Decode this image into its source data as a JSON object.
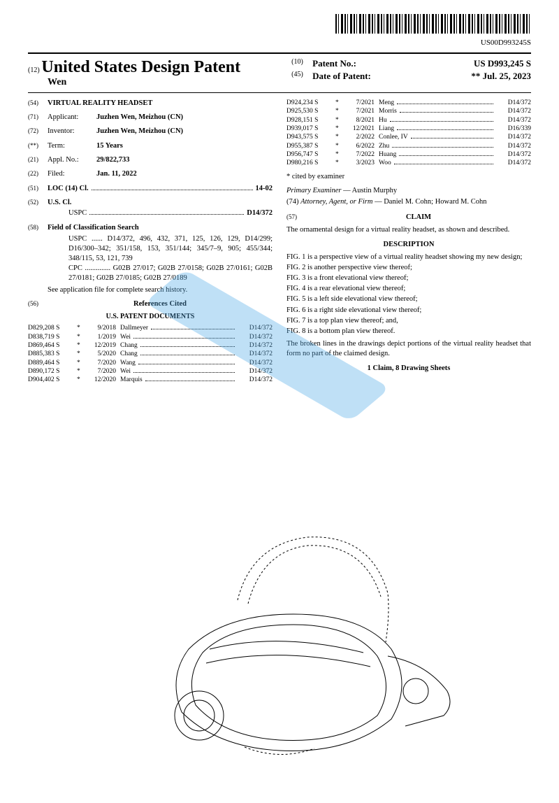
{
  "doc_number": "US00D993245S",
  "code12": "(12)",
  "title_country": "United States Design Patent",
  "author": "Wen",
  "header_right": [
    {
      "num": "(10)",
      "label": "Patent No.:",
      "val": "US D993,245 S"
    },
    {
      "num": "(45)",
      "label": "Date of Patent:",
      "val": "**    Jul. 25, 2023"
    }
  ],
  "left_fields": {
    "f54": {
      "num": "(54)",
      "val": "VIRTUAL REALITY HEADSET"
    },
    "f71": {
      "num": "(71)",
      "label": "Applicant:",
      "val": "Juzhen Wen, Meizhou (CN)"
    },
    "f72": {
      "num": "(72)",
      "label": "Inventor:",
      "val": "Juzhen Wen, Meizhou (CN)"
    },
    "fterm": {
      "num": "(**)",
      "label": "Term:",
      "val": "15 Years"
    },
    "f21": {
      "num": "(21)",
      "label": "Appl. No.:",
      "val": "29/822,733"
    },
    "f22": {
      "num": "(22)",
      "label": "Filed:",
      "val": "Jan. 11, 2022"
    },
    "f51": {
      "num": "(51)",
      "label": "LOC (14) Cl.",
      "val": "14-02"
    },
    "f52": {
      "num": "(52)",
      "label": "U.S. Cl.",
      "sub": "USPC",
      "val": "D14/372"
    },
    "f58": {
      "num": "(58)",
      "label": "Field of Classification Search",
      "uspc": "D14/372, 496, 432, 371, 125, 126, 129, D14/299; D16/300–342; 351/158, 153, 351/144; 345/7–9, 905; 455/344; 348/115, 53, 121, 739",
      "cpc": "G02B 27/017; G02B 27/0158; G02B 27/0161; G02B 27/0181; G02B 27/0185; G02B 27/0189",
      "note": "See application file for complete search history."
    },
    "f56": {
      "num": "(56)",
      "label": "References Cited",
      "sub": "U.S. PATENT DOCUMENTS"
    }
  },
  "refs_left": [
    {
      "pn": "D829,208 S",
      "m": "*",
      "d": "9/2018",
      "n": "Dallmeyer",
      "c": "D14/372"
    },
    {
      "pn": "D838,719 S",
      "m": "*",
      "d": "1/2019",
      "n": "Wei",
      "c": "D14/372"
    },
    {
      "pn": "D869,464 S",
      "m": "*",
      "d": "12/2019",
      "n": "Chang",
      "c": "D14/372"
    },
    {
      "pn": "D885,383 S",
      "m": "*",
      "d": "5/2020",
      "n": "Chang",
      "c": "D14/372"
    },
    {
      "pn": "D889,464 S",
      "m": "*",
      "d": "7/2020",
      "n": "Wang",
      "c": "D14/372"
    },
    {
      "pn": "D890,172 S",
      "m": "*",
      "d": "7/2020",
      "n": "Wei",
      "c": "D14/372"
    },
    {
      "pn": "D904,402 S",
      "m": "*",
      "d": "12/2020",
      "n": "Marquis",
      "c": "D14/372"
    }
  ],
  "refs_right": [
    {
      "pn": "D924,234 S",
      "m": "*",
      "d": "7/2021",
      "n": "Meng",
      "c": "D14/372"
    },
    {
      "pn": "D925,530 S",
      "m": "*",
      "d": "7/2021",
      "n": "Morris",
      "c": "D14/372"
    },
    {
      "pn": "D928,151 S",
      "m": "*",
      "d": "8/2021",
      "n": "Hu",
      "c": "D14/372"
    },
    {
      "pn": "D939,017 S",
      "m": "*",
      "d": "12/2021",
      "n": "Liang",
      "c": "D16/339"
    },
    {
      "pn": "D943,575 S",
      "m": "*",
      "d": "2/2022",
      "n": "Conlee, IV",
      "c": "D14/372"
    },
    {
      "pn": "D955,387 S",
      "m": "*",
      "d": "6/2022",
      "n": "Zhu",
      "c": "D14/372"
    },
    {
      "pn": "D956,747 S",
      "m": "*",
      "d": "7/2022",
      "n": "Huang",
      "c": "D14/372"
    },
    {
      "pn": "D980,216 S",
      "m": "*",
      "d": "3/2023",
      "n": "Woo",
      "c": "D14/372"
    }
  ],
  "cited_note": "* cited by examiner",
  "examiner": {
    "label": "Primary Examiner",
    "val": "Austin Murphy"
  },
  "attorney": {
    "num": "(74)",
    "label": "Attorney, Agent, or Firm",
    "val": "Daniel M. Cohn; Howard M. Cohn"
  },
  "claim": {
    "num": "(57)",
    "title": "CLAIM",
    "body": "The ornamental design for a virtual reality headset, as shown and described."
  },
  "description": {
    "title": "DESCRIPTION",
    "figs": [
      "FIG. 1 is a perspective view of a virtual reality headset showing my new design;",
      "FIG. 2 is another perspective view thereof;",
      "FIG. 3 is a front elevational view thereof;",
      "FIG. 4 is a rear elevational view thereof;",
      "FIG. 5 is a left side elevational view thereof;",
      "FIG. 6 is a right side elevational view thereof;",
      "FIG. 7 is a top plan view thereof; and,",
      "FIG. 8 is a bottom plan view thereof."
    ],
    "broken": "The broken lines in the drawings depict portions of the virtual reality headset that form no part of the claimed design."
  },
  "footer": "1 Claim, 8 Drawing Sheets",
  "colors": {
    "text": "#000000",
    "bg": "#ffffff",
    "watermark": "#4aa8e8"
  }
}
